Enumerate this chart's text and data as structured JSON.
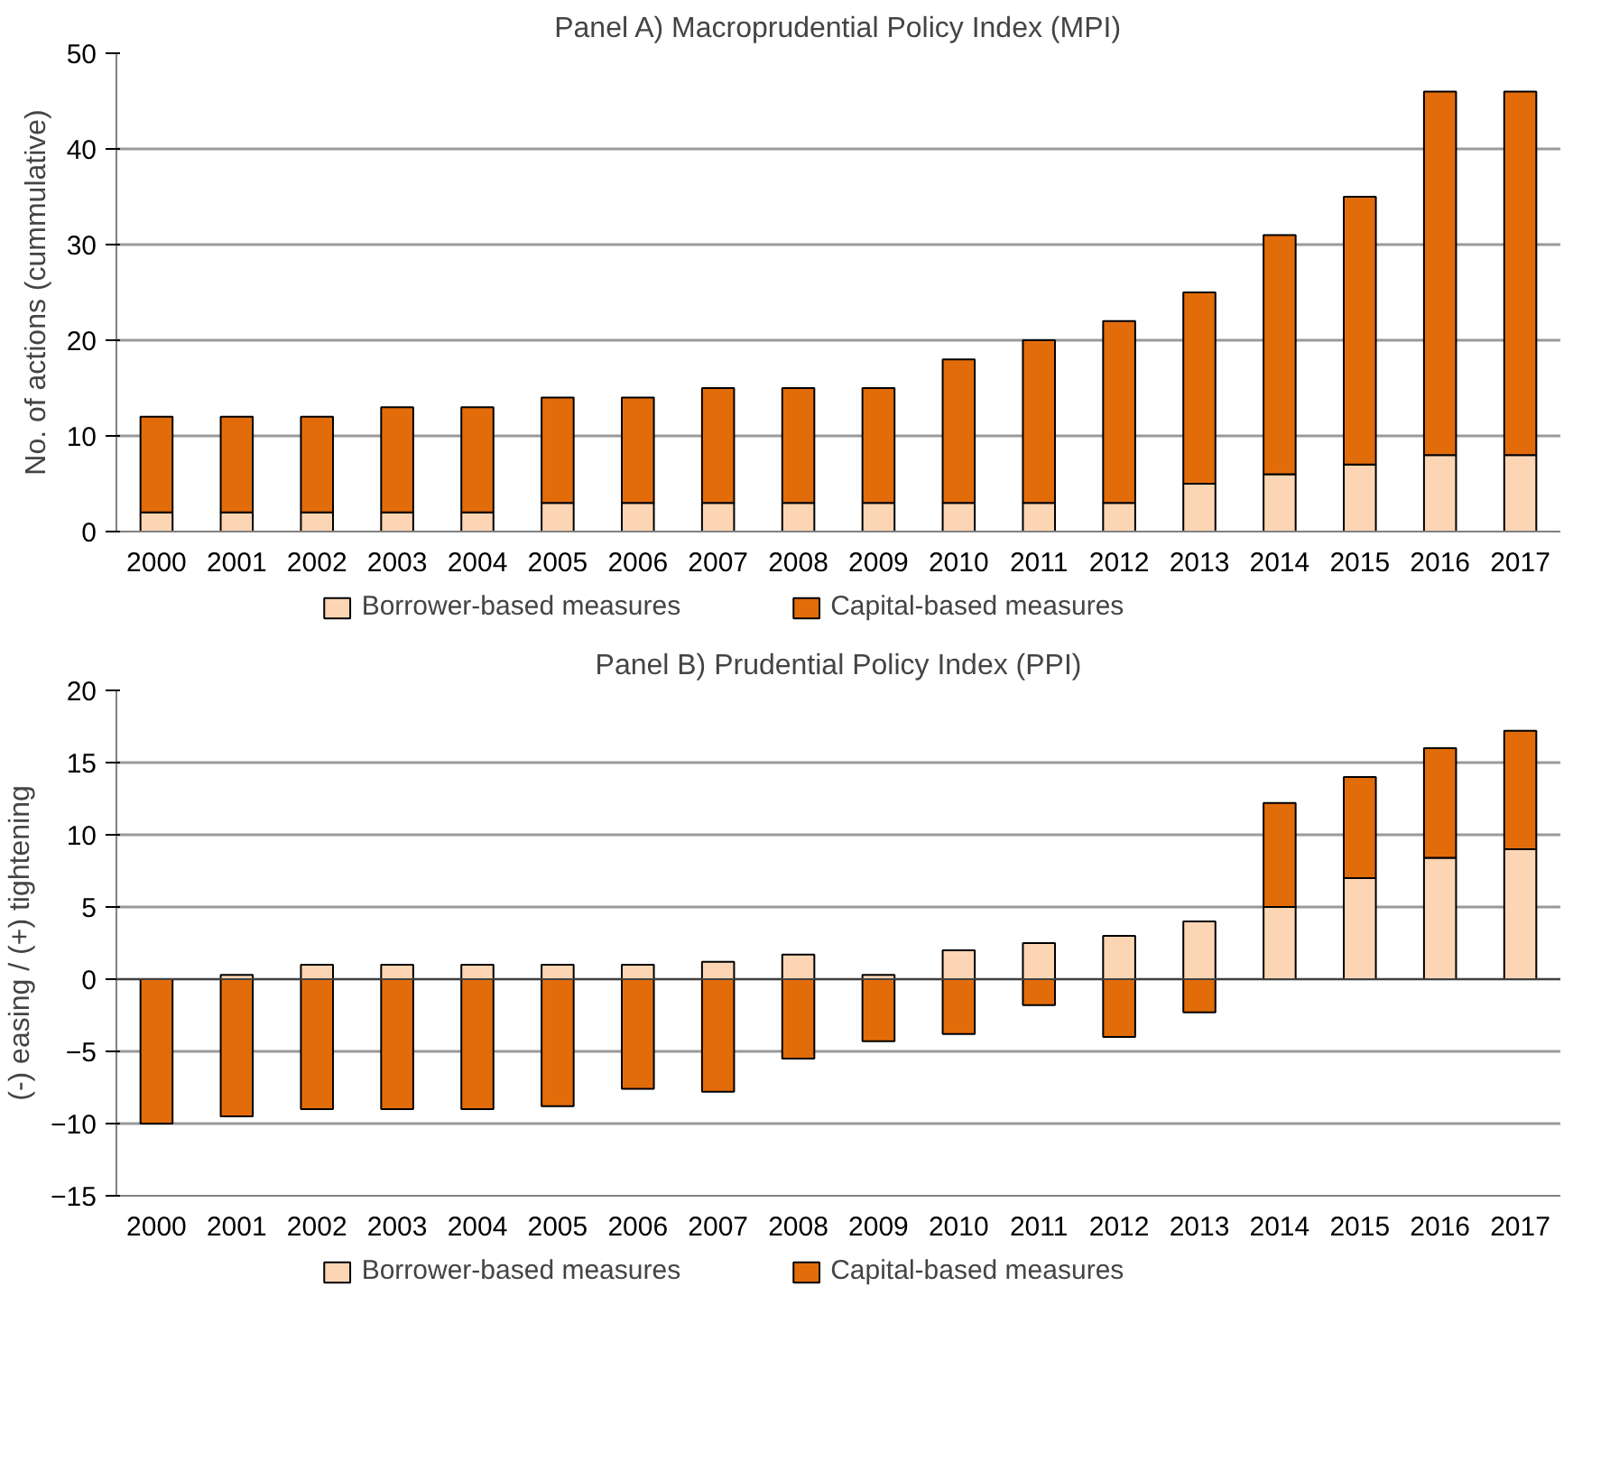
{
  "chart_data": [
    {
      "type": "bar",
      "title": "Panel A) Macroprudential Policy Index (MPI)",
      "ylabel": "No. of actions (cummulative)",
      "categories": [
        "2000",
        "2001",
        "2002",
        "2003",
        "2004",
        "2005",
        "2006",
        "2007",
        "2008",
        "2009",
        "2010",
        "2011",
        "2012",
        "2013",
        "2014",
        "2015",
        "2016",
        "2017"
      ],
      "stacked": true,
      "ylim": [
        0,
        50
      ],
      "yticks": [
        0,
        10,
        20,
        30,
        40,
        50
      ],
      "grid": "y",
      "legend": "bottom",
      "series": [
        {
          "name": "Borrower-based measures",
          "color": "#fcd5b4",
          "values": [
            2,
            2,
            2,
            2,
            2,
            3,
            3,
            3,
            3,
            3,
            3,
            3,
            3,
            5,
            6,
            7,
            8,
            8
          ]
        },
        {
          "name": "Capital-based measures",
          "color": "#e36c0a",
          "values": [
            10,
            10,
            10,
            11,
            11,
            11,
            11,
            12,
            12,
            12,
            15,
            17,
            19,
            20,
            25,
            28,
            38,
            38
          ]
        }
      ]
    },
    {
      "type": "bar",
      "title": "Panel B) Prudential Policy Index (PPI)",
      "ylabel": "(-) easing / (+) tightening",
      "categories": [
        "2000",
        "2001",
        "2002",
        "2003",
        "2004",
        "2005",
        "2006",
        "2007",
        "2008",
        "2009",
        "2010",
        "2011",
        "2012",
        "2013",
        "2014",
        "2015",
        "2016",
        "2017"
      ],
      "stacked": true,
      "ylim": [
        -15,
        20
      ],
      "yticks": [
        -15,
        -10,
        -5,
        0,
        5,
        10,
        15,
        20
      ],
      "grid": "y",
      "legend": "bottom",
      "series": [
        {
          "name": "Borrower-based measures",
          "color": "#fcd5b4",
          "values": [
            null,
            0.3,
            1,
            1,
            1,
            1,
            1,
            1.2,
            1.7,
            0.3,
            2,
            2.5,
            3,
            4,
            5,
            7,
            8.4,
            9
          ]
        },
        {
          "name": "Capital-based measures",
          "color": "#e36c0a",
          "values": [
            -10,
            -9.5,
            -9,
            -9,
            -9,
            -8.8,
            -7.6,
            -7.8,
            -5.5,
            -4.3,
            -3.8,
            -1.8,
            -4,
            -2.3,
            7.2,
            7,
            7.6,
            8.2
          ]
        }
      ]
    }
  ]
}
